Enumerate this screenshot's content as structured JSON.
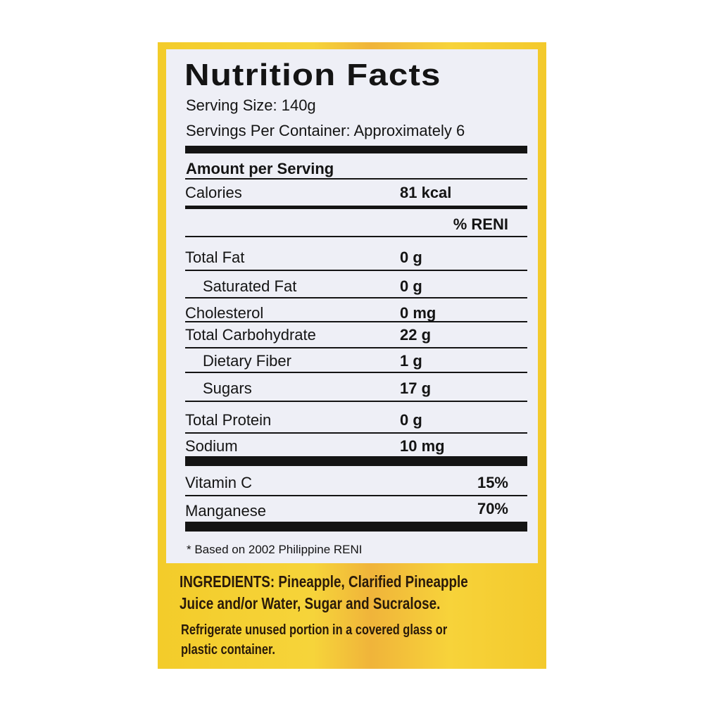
{
  "label": {
    "title": "Nutrition Facts",
    "serving_size": "Serving Size:  140g",
    "servings_per_container": "Servings Per Container: Approximately 6",
    "amount_per_serving": "Amount per Serving",
    "calories_label": "Calories",
    "calories_value": "81 kcal",
    "reni_header": "% RENI",
    "nutrients": [
      {
        "name": "Total Fat",
        "value": "0 g"
      },
      {
        "name": "Saturated Fat",
        "value": "0 g"
      },
      {
        "name": "Cholesterol",
        "value": "0 mg"
      },
      {
        "name": "Total Carbohydrate",
        "value": "22 g"
      },
      {
        "name": "Dietary Fiber",
        "value": "1 g"
      },
      {
        "name": "Sugars",
        "value": "17 g"
      },
      {
        "name": "Total Protein",
        "value": "0 g"
      },
      {
        "name": "Sodium",
        "value": "10 mg"
      }
    ],
    "vitamins": [
      {
        "name": "Vitamin C",
        "percent": "15%"
      },
      {
        "name": "Manganese",
        "percent": "70%"
      }
    ],
    "footnote": "* Based on 2002 Philippine RENI"
  },
  "ingredients": {
    "line1": "INGREDIENTS: Pineapple, Clarified Pineapple",
    "line2": "Juice and/or Water, Sugar and Sucralose."
  },
  "storage": {
    "line1": "Refrigerate unused portion in a covered glass or",
    "line2": "plastic container."
  },
  "colors": {
    "label_yellow": "#f3cc2a",
    "panel": "#eeeff6",
    "ink": "#141414"
  }
}
